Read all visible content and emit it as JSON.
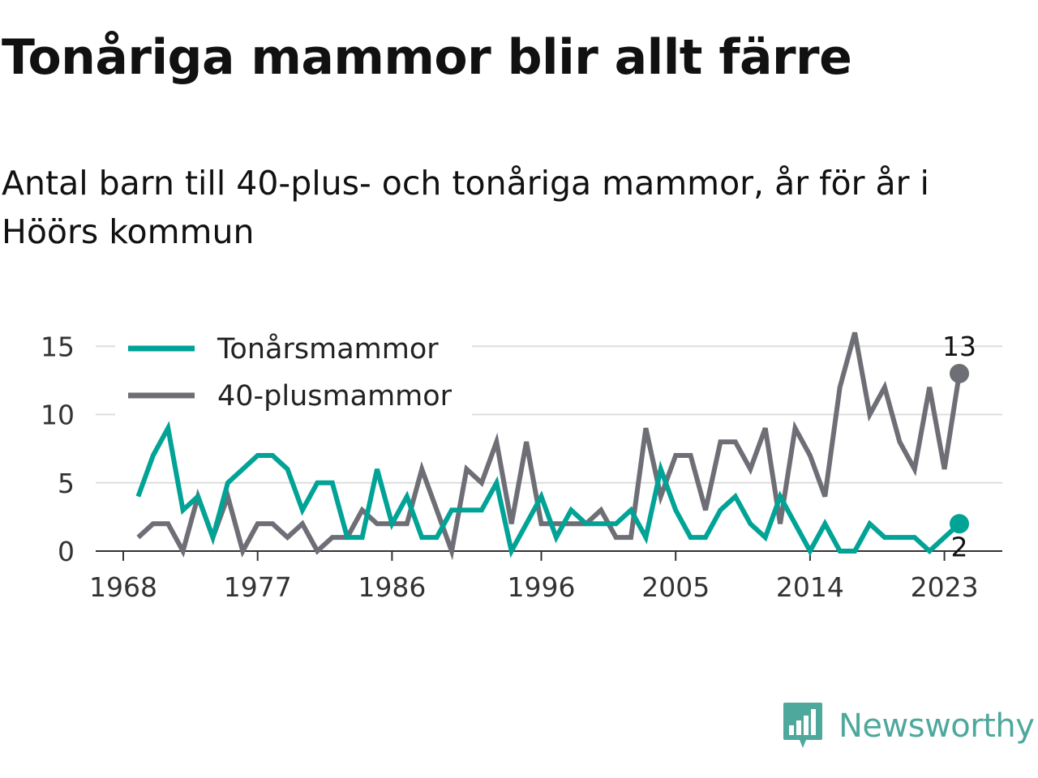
{
  "title": "Tonåriga mammor blir allt färre",
  "subtitle": "Antal barn till 40-plus- och tonåriga mammor, år för år i Höörs kommun",
  "brand": {
    "name": "Newsworthy",
    "color": "#4ea89c"
  },
  "chart_data": {
    "type": "line",
    "xlim": [
      1968,
      2025
    ],
    "ylim": [
      0,
      16
    ],
    "yticks": [
      0,
      5,
      10,
      15
    ],
    "xticks": [
      1968,
      1977,
      1986,
      1996,
      2005,
      2014,
      2023
    ],
    "grid": true,
    "legend": "top-left",
    "x": [
      1969,
      1970,
      1971,
      1972,
      1973,
      1974,
      1975,
      1976,
      1977,
      1978,
      1979,
      1980,
      1981,
      1982,
      1983,
      1984,
      1985,
      1986,
      1987,
      1988,
      1989,
      1990,
      1991,
      1992,
      1993,
      1994,
      1995,
      1996,
      1997,
      1998,
      1999,
      2000,
      2001,
      2002,
      2003,
      2004,
      2005,
      2006,
      2007,
      2008,
      2009,
      2010,
      2011,
      2012,
      2013,
      2014,
      2015,
      2016,
      2017,
      2018,
      2019,
      2020,
      2021,
      2022,
      2023,
      2024
    ],
    "series": [
      {
        "name": "Tonårsmammor",
        "color": "#00a396",
        "values": [
          4,
          7,
          9,
          3,
          4,
          1,
          5,
          6,
          7,
          7,
          6,
          3,
          5,
          5,
          1,
          1,
          6,
          2,
          4,
          1,
          1,
          3,
          3,
          3,
          5,
          0,
          2,
          4,
          1,
          3,
          2,
          2,
          2,
          3,
          1,
          6,
          3,
          1,
          1,
          3,
          4,
          2,
          1,
          4,
          2,
          0,
          2,
          0,
          0,
          2,
          1,
          1,
          1,
          0,
          1,
          2
        ],
        "end_label": "2"
      },
      {
        "name": "40-plusmammor",
        "color": "#6e6e76",
        "values": [
          1,
          2,
          2,
          0,
          4,
          1,
          4,
          0,
          2,
          2,
          1,
          2,
          0,
          1,
          1,
          3,
          2,
          2,
          2,
          6,
          3,
          0,
          6,
          5,
          8,
          2,
          8,
          2,
          2,
          2,
          2,
          3,
          1,
          1,
          9,
          4,
          7,
          7,
          3,
          8,
          8,
          6,
          9,
          2,
          9,
          7,
          4,
          12,
          16,
          10,
          12,
          8,
          6,
          12,
          6,
          13
        ],
        "end_label": "13"
      }
    ]
  }
}
